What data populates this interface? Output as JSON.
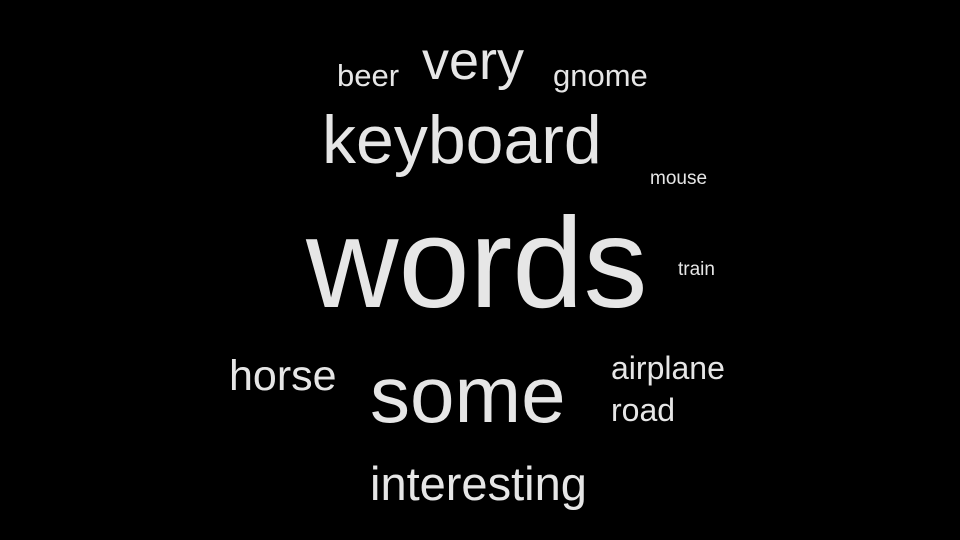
{
  "colors": {
    "background": "#000000",
    "text": "#e6e6e6"
  },
  "words": [
    {
      "key": "very",
      "text": "very"
    },
    {
      "key": "beer",
      "text": "beer"
    },
    {
      "key": "gnome",
      "text": "gnome"
    },
    {
      "key": "keyboard",
      "text": "keyboard"
    },
    {
      "key": "mouse",
      "text": "mouse"
    },
    {
      "key": "words",
      "text": "words"
    },
    {
      "key": "train",
      "text": "train"
    },
    {
      "key": "horse",
      "text": "horse"
    },
    {
      "key": "some",
      "text": "some"
    },
    {
      "key": "airplane",
      "text": "airplane"
    },
    {
      "key": "road",
      "text": "road"
    },
    {
      "key": "interesting",
      "text": "interesting"
    }
  ]
}
